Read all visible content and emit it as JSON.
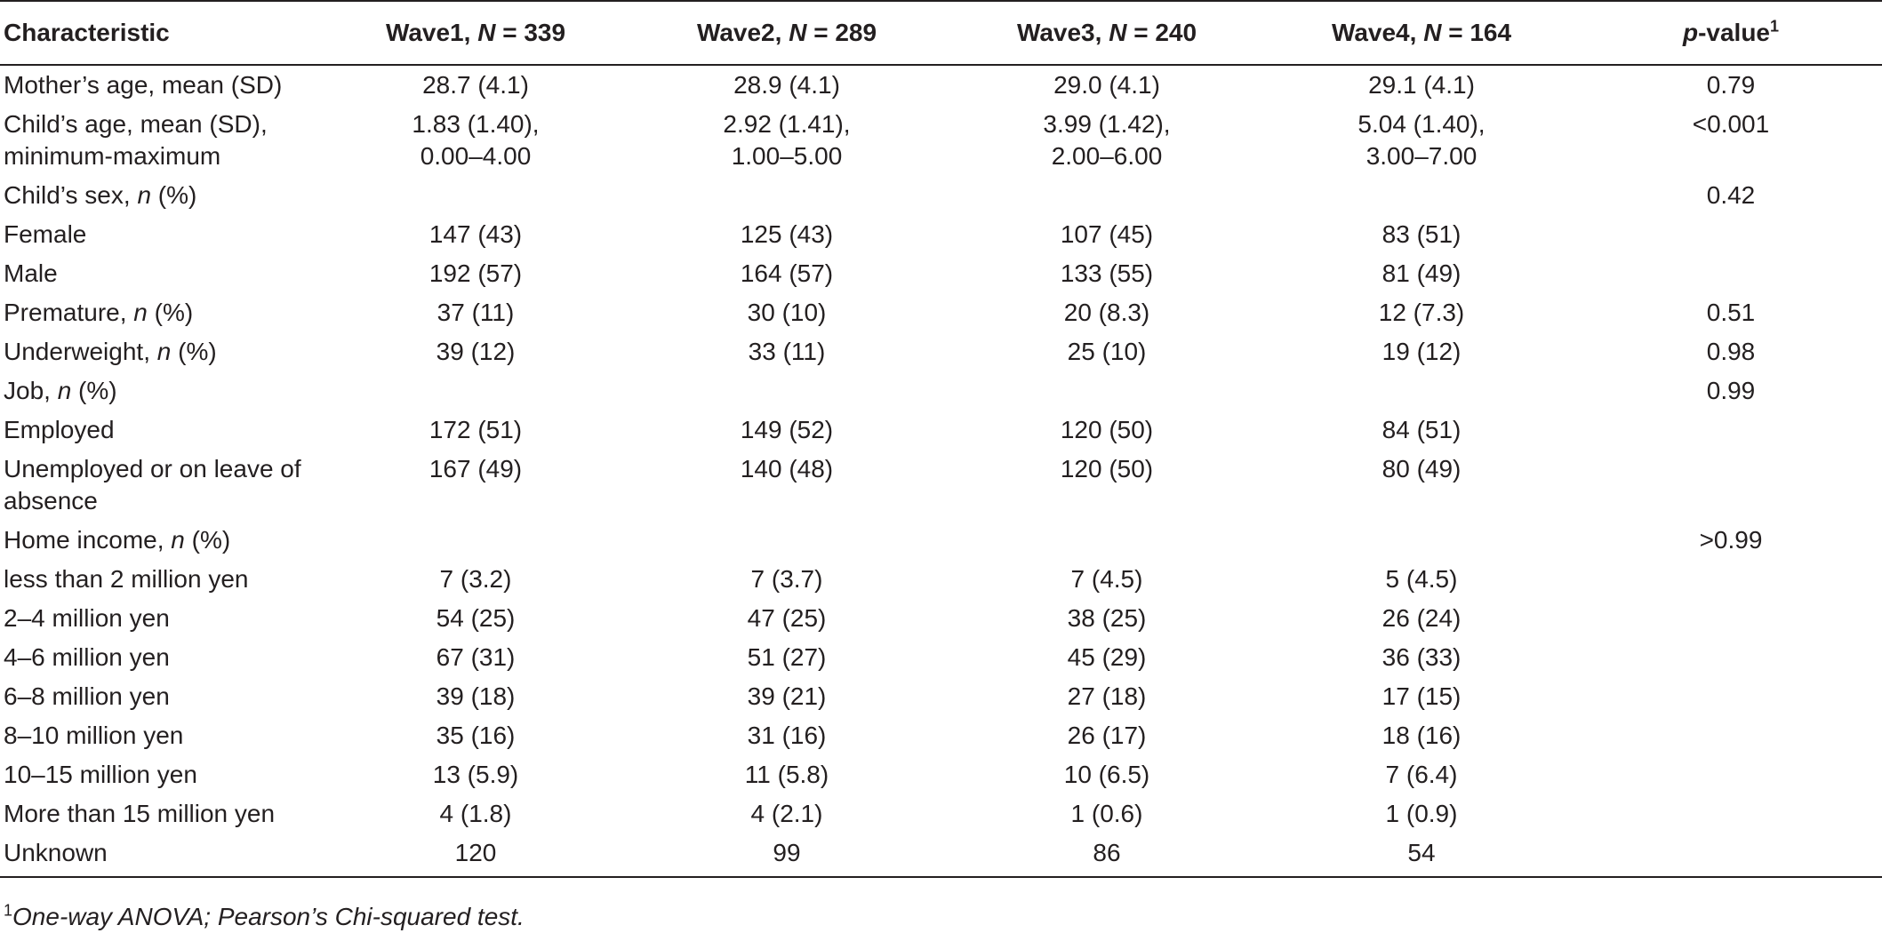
{
  "header": {
    "characteristic": "Characteristic",
    "wave1": {
      "label": "Wave1, ",
      "n_label": "N",
      "n_value": " = 339"
    },
    "wave2": {
      "label": "Wave2, ",
      "n_label": "N",
      "n_value": " = 289"
    },
    "wave3": {
      "label": "Wave3, ",
      "n_label": "N",
      "n_value": " = 240"
    },
    "wave4": {
      "label": "Wave4, ",
      "n_label": "N",
      "n_value": " = 164"
    },
    "pvalue": {
      "label_italic": "p",
      "label_rest": "-value",
      "footnote_mark": "1"
    }
  },
  "rows": [
    {
      "name": "Mother’s age, mean (SD)",
      "w1": "28.7 (4.1)",
      "w2": "28.9 (4.1)",
      "w3": "29.0 (4.1)",
      "w4": "29.1 (4.1)",
      "p": "0.79"
    },
    {
      "name": "Child’s age, mean (SD), minimum-maximum",
      "w1": "1.83 (1.40), 0.00–4.00",
      "w2": "2.92 (1.41), 1.00–5.00",
      "w3": "3.99 (1.42), 2.00–6.00",
      "w4": "5.04 (1.40), 3.00–7.00",
      "p": "<0.001"
    },
    {
      "name": "Child’s sex, n (%)",
      "w1": "",
      "w2": "",
      "w3": "",
      "w4": "",
      "p": "0.42"
    },
    {
      "name": "Female",
      "w1": "147 (43)",
      "w2": "125 (43)",
      "w3": "107 (45)",
      "w4": "83 (51)",
      "p": ""
    },
    {
      "name": "Male",
      "w1": "192 (57)",
      "w2": "164 (57)",
      "w3": "133 (55)",
      "w4": "81 (49)",
      "p": ""
    },
    {
      "name": "Premature, n (%)",
      "w1": "37 (11)",
      "w2": "30 (10)",
      "w3": "20 (8.3)",
      "w4": "12 (7.3)",
      "p": "0.51"
    },
    {
      "name": "Underweight, n (%)",
      "w1": "39 (12)",
      "w2": "33 (11)",
      "w3": "25 (10)",
      "w4": "19 (12)",
      "p": "0.98"
    },
    {
      "name": "Job, n (%)",
      "w1": "",
      "w2": "",
      "w3": "",
      "w4": "",
      "p": "0.99"
    },
    {
      "name": "Employed",
      "w1": "172 (51)",
      "w2": "149 (52)",
      "w3": "120 (50)",
      "w4": "84 (51)",
      "p": ""
    },
    {
      "name": "Unemployed or on leave of absence",
      "w1": "167 (49)",
      "w2": "140 (48)",
      "w3": "120 (50)",
      "w4": "80 (49)",
      "p": ""
    },
    {
      "name": "Home income, n (%)",
      "w1": "",
      "w2": "",
      "w3": "",
      "w4": "",
      "p": ">0.99"
    },
    {
      "name": "less than 2 million yen",
      "w1": "7 (3.2)",
      "w2": "7 (3.7)",
      "w3": "7 (4.5)",
      "w4": "5 (4.5)",
      "p": ""
    },
    {
      "name": "2–4 million yen",
      "w1": "54 (25)",
      "w2": "47 (25)",
      "w3": "38 (25)",
      "w4": "26 (24)",
      "p": ""
    },
    {
      "name": "4–6 million yen",
      "w1": "67 (31)",
      "w2": "51 (27)",
      "w3": "45 (29)",
      "w4": "36 (33)",
      "p": ""
    },
    {
      "name": "6–8 million yen",
      "w1": "39 (18)",
      "w2": "39 (21)",
      "w3": "27 (18)",
      "w4": "17 (15)",
      "p": ""
    },
    {
      "name": "8–10 million yen",
      "w1": "35 (16)",
      "w2": "31 (16)",
      "w3": "26 (17)",
      "w4": "18 (16)",
      "p": ""
    },
    {
      "name": "10–15 million yen",
      "w1": "13 (5.9)",
      "w2": "11 (5.8)",
      "w3": "10 (6.5)",
      "w4": "7 (6.4)",
      "p": ""
    },
    {
      "name": "More than 15 million yen",
      "w1": "4 (1.8)",
      "w2": "4 (2.1)",
      "w3": "1 (0.6)",
      "w4": "1 (0.9)",
      "p": ""
    },
    {
      "name": "Unknown",
      "w1": "120",
      "w2": "99",
      "w3": "86",
      "w4": "54",
      "p": ""
    }
  ],
  "footnote": {
    "mark": "1",
    "text": "One-way ANOVA; Pearson’s Chi-squared test."
  }
}
